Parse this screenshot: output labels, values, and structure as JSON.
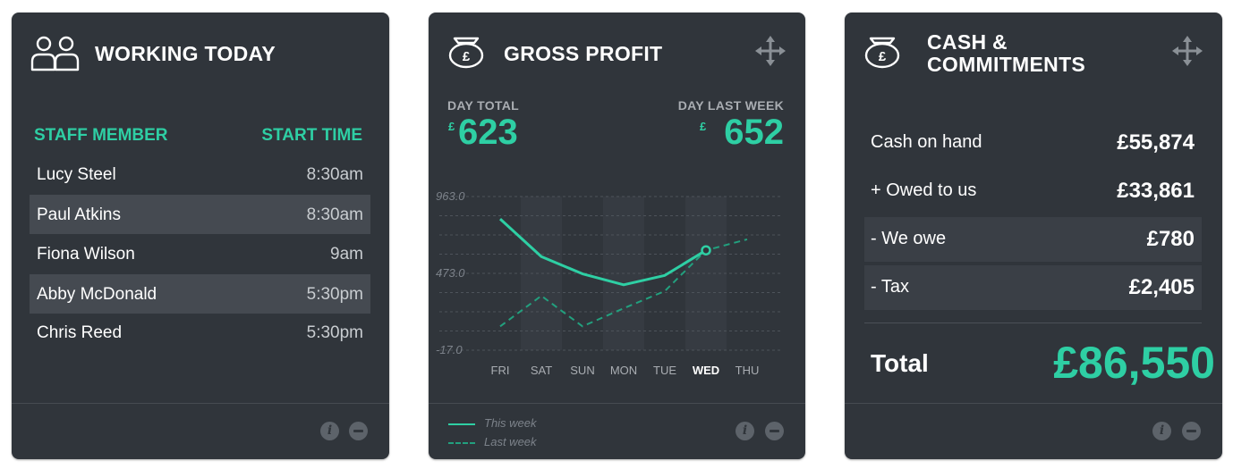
{
  "working_today": {
    "title": "WORKING TODAY",
    "col_staff": "STAFF MEMBER",
    "col_start": "START TIME",
    "rows": [
      {
        "name": "Lucy Steel",
        "time": "8:30am"
      },
      {
        "name": "Paul Atkins",
        "time": "8:30am"
      },
      {
        "name": "Fiona Wilson",
        "time": "9am"
      },
      {
        "name": "Abby McDonald",
        "time": "5:30pm"
      },
      {
        "name": "Chris Reed",
        "time": "5:30pm"
      }
    ],
    "info_label": "i",
    "icon": "staff-icon"
  },
  "gross_profit": {
    "title": "GROSS PROFIT",
    "day_total_label": "DAY TOTAL",
    "day_total_value": "623",
    "day_last_week_label": "DAY LAST WEEK",
    "day_last_week_value": "652",
    "currency": "£",
    "info_label": "i",
    "icon": "money-bag-icon",
    "move_icon": "move-icon"
  },
  "chart_data": {
    "type": "line",
    "categories": [
      "FRI",
      "SAT",
      "SUN",
      "MON",
      "TUE",
      "WED",
      "THU"
    ],
    "highlight_category": "WED",
    "series": [
      {
        "name": "This week",
        "values": [
          820,
          580,
          470,
          400,
          460,
          620,
          null
        ],
        "color": "#2ecfa4",
        "style": "solid"
      },
      {
        "name": "Last week",
        "values": [
          135,
          330,
          135,
          250,
          360,
          620,
          690
        ],
        "color": "#22a07e",
        "style": "dashed"
      }
    ],
    "y_ticks": [
      "963.0",
      "473.0",
      "-17.0"
    ],
    "ylim": [
      -17,
      963
    ],
    "grid": true,
    "legend": "bottom-left"
  },
  "cash_commitments": {
    "title_line1": "CASH &",
    "title_line2": "COMMITMENTS",
    "rows": [
      {
        "label": "Cash on hand",
        "value": "£55,874"
      },
      {
        "label": "+ Owed to us",
        "value": "£33,861"
      },
      {
        "label": "- We owe",
        "value": "£780"
      },
      {
        "label": "- Tax",
        "value": "£2,405"
      }
    ],
    "total_label": "Total",
    "total_value": "£86,550",
    "info_label": "i",
    "icon": "money-bag-icon",
    "move_icon": "move-icon"
  },
  "colors": {
    "card_bg": "#30353b",
    "accent": "#2ecfa4",
    "row_shade": "#454a51"
  }
}
